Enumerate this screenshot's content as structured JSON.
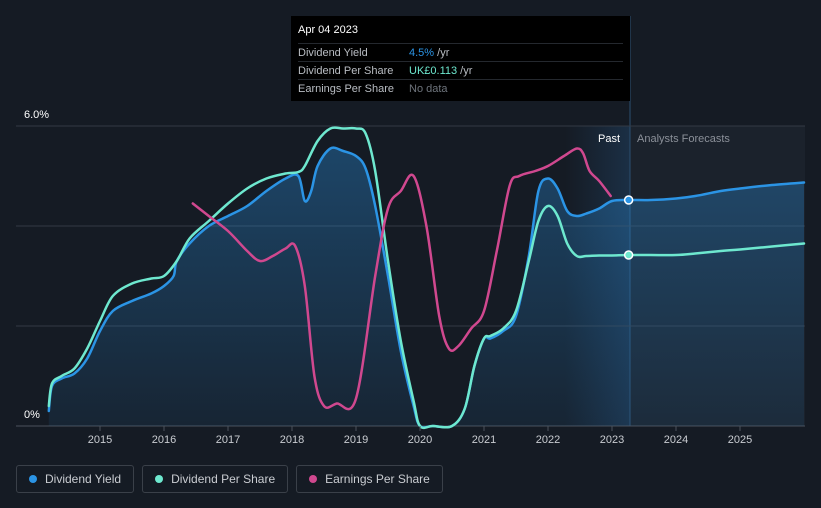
{
  "tooltip": {
    "date": "Apr 04 2023",
    "rows": [
      {
        "label": "Dividend Yield",
        "value": "4.5%",
        "unit": " /yr"
      },
      {
        "label": "Dividend Per Share",
        "value": "UK£0.113",
        "unit": " /yr"
      },
      {
        "label": "Earnings Per Share",
        "value": "No data"
      }
    ]
  },
  "chart_data": {
    "type": "line",
    "y_top_label": "6.0%",
    "y_bottom_label": "0%",
    "ylim": [
      0,
      6.0
    ],
    "past_label": "Past",
    "forecast_label": "Analysts Forecasts",
    "x_ticks": [
      "2015",
      "2016",
      "2017",
      "2018",
      "2019",
      "2020",
      "2021",
      "2022",
      "2023",
      "2024",
      "2025"
    ],
    "xlim": [
      2014.0,
      2026.0
    ],
    "divider_x": 2023.26,
    "series": [
      {
        "name": "Dividend Yield",
        "color": "#2b94e5",
        "fill": true,
        "x": [
          2014.2,
          2014.25,
          2014.4,
          2014.6,
          2014.8,
          2015.0,
          2015.2,
          2015.5,
          2015.8,
          2016.0,
          2016.15,
          2016.2,
          2016.4,
          2016.7,
          2017.0,
          2017.3,
          2017.6,
          2017.9,
          2018.1,
          2018.2,
          2018.3,
          2018.4,
          2018.6,
          2018.8,
          2019.0,
          2019.15,
          2019.3,
          2019.5,
          2019.7,
          2019.9,
          2020.0,
          2020.2,
          2020.5,
          2020.7,
          2020.85,
          2021.0,
          2021.1,
          2021.3,
          2021.5,
          2021.7,
          2021.85,
          2022.0,
          2022.15,
          2022.3,
          2022.45,
          2022.6,
          2022.8,
          2023.0,
          2023.26,
          2023.6,
          2024.0,
          2024.3,
          2024.7,
          2025.0,
          2025.5,
          2026.0
        ],
        "y": [
          0.3,
          0.8,
          0.95,
          1.05,
          1.35,
          1.9,
          2.3,
          2.5,
          2.65,
          2.8,
          3.0,
          3.3,
          3.65,
          4.0,
          4.2,
          4.4,
          4.7,
          4.95,
          5.0,
          4.5,
          4.7,
          5.2,
          5.55,
          5.5,
          5.4,
          5.15,
          4.4,
          3.0,
          1.5,
          0.4,
          0.0,
          0.0,
          0.0,
          0.35,
          1.2,
          1.75,
          1.75,
          1.9,
          2.2,
          3.4,
          4.7,
          4.95,
          4.75,
          4.3,
          4.2,
          4.25,
          4.35,
          4.5,
          4.52,
          4.52,
          4.55,
          4.6,
          4.7,
          4.75,
          4.82,
          4.87
        ]
      },
      {
        "name": "Dividend Per Share",
        "color": "#6ee8cf",
        "fill": false,
        "x": [
          2014.2,
          2014.25,
          2014.4,
          2014.6,
          2014.8,
          2015.0,
          2015.2,
          2015.5,
          2015.8,
          2016.0,
          2016.2,
          2016.4,
          2016.7,
          2017.0,
          2017.3,
          2017.6,
          2017.9,
          2018.1,
          2018.2,
          2018.4,
          2018.6,
          2018.8,
          2019.0,
          2019.15,
          2019.3,
          2019.5,
          2019.7,
          2019.9,
          2020.0,
          2020.2,
          2020.5,
          2020.7,
          2020.85,
          2021.0,
          2021.1,
          2021.3,
          2021.5,
          2021.7,
          2021.85,
          2022.0,
          2022.15,
          2022.3,
          2022.45,
          2022.6,
          2022.8,
          2023.0,
          2023.26,
          2023.6,
          2024.0,
          2024.3,
          2024.7,
          2025.0,
          2025.5,
          2026.0
        ],
        "y": [
          0.4,
          0.85,
          1.0,
          1.15,
          1.55,
          2.1,
          2.6,
          2.85,
          2.95,
          3.0,
          3.3,
          3.75,
          4.1,
          4.45,
          4.75,
          4.95,
          5.05,
          5.08,
          5.2,
          5.7,
          5.95,
          5.95,
          5.95,
          5.85,
          5.1,
          3.3,
          1.7,
          0.5,
          0.0,
          0.0,
          0.0,
          0.35,
          1.2,
          1.75,
          1.8,
          1.95,
          2.3,
          3.3,
          4.1,
          4.4,
          4.2,
          3.65,
          3.4,
          3.4,
          3.41,
          3.41,
          3.42,
          3.42,
          3.42,
          3.45,
          3.5,
          3.53,
          3.59,
          3.65
        ]
      },
      {
        "name": "Earnings Per Share",
        "color": "#d0488f",
        "fill": false,
        "x": [
          2016.45,
          2016.7,
          2017.0,
          2017.3,
          2017.5,
          2017.7,
          2017.9,
          2018.05,
          2018.2,
          2018.35,
          2018.5,
          2018.7,
          2019.0,
          2019.3,
          2019.5,
          2019.7,
          2019.9,
          2020.1,
          2020.3,
          2020.45,
          2020.6,
          2020.8,
          2021.0,
          2021.2,
          2021.4,
          2021.55,
          2021.8,
          2022.0,
          2022.25,
          2022.45,
          2022.55,
          2022.65,
          2022.8,
          2022.98
        ],
        "y": [
          4.45,
          4.2,
          3.9,
          3.5,
          3.3,
          3.4,
          3.55,
          3.6,
          2.8,
          1.0,
          0.4,
          0.45,
          0.55,
          3.0,
          4.35,
          4.7,
          5.0,
          4.0,
          2.2,
          1.55,
          1.6,
          1.95,
          2.3,
          3.5,
          4.8,
          5.0,
          5.1,
          5.2,
          5.4,
          5.55,
          5.45,
          5.1,
          4.9,
          4.6
        ]
      }
    ],
    "markers": [
      {
        "series": "Dividend Yield",
        "x": 2023.26,
        "y": 4.52
      },
      {
        "series": "Dividend Per Share",
        "x": 2023.26,
        "y": 3.42
      }
    ],
    "grid": true
  },
  "legend": [
    {
      "label": "Dividend Yield",
      "color": "#2b94e5"
    },
    {
      "label": "Dividend Per Share",
      "color": "#6ee8cf"
    },
    {
      "label": "Earnings Per Share",
      "color": "#d0488f"
    }
  ]
}
